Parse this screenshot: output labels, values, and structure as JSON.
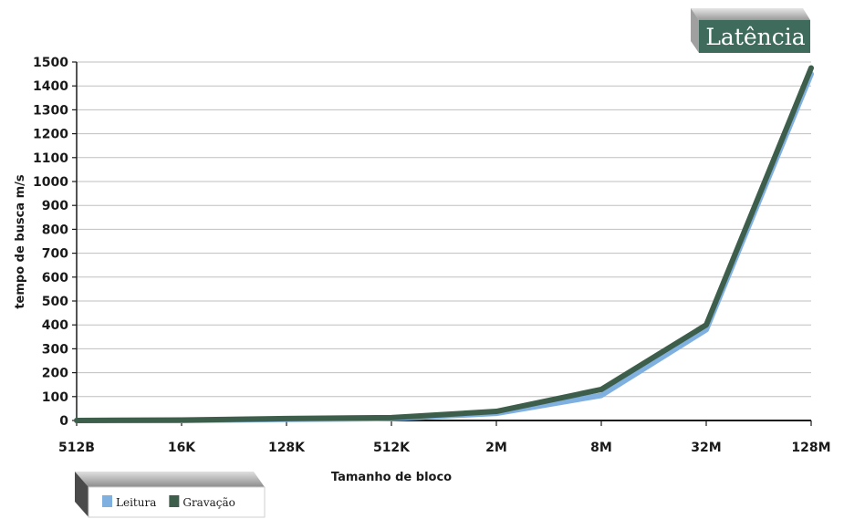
{
  "chart_data": {
    "type": "line",
    "title": "Latência",
    "xlabel": "Tamanho de bloco",
    "ylabel": "tempo de busca m/s",
    "categories": [
      "512B",
      "16K",
      "128K",
      "512K",
      "2M",
      "8M",
      "32M",
      "128M"
    ],
    "ylim": [
      0,
      1500
    ],
    "yticks": [
      0,
      100,
      200,
      300,
      400,
      500,
      600,
      700,
      800,
      900,
      1000,
      1100,
      1200,
      1300,
      1400,
      1500
    ],
    "grid": true,
    "legend_position": "bottom-left",
    "series": [
      {
        "name": "Leitura",
        "color": "#7fb0e0",
        "values": [
          0,
          0,
          5,
          8,
          30,
          105,
          380,
          1450
        ]
      },
      {
        "name": "Gravação",
        "color": "#3d5e4b",
        "values": [
          0,
          2,
          8,
          12,
          38,
          130,
          400,
          1475
        ]
      }
    ]
  },
  "colors": {
    "badge_bg": "#3f6b5d",
    "grid": "#bfbfbf",
    "axis": "#1a1a1a"
  }
}
